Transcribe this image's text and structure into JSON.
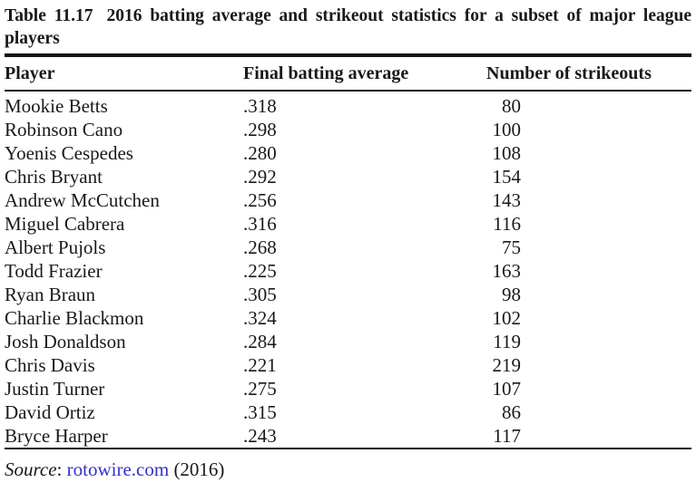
{
  "title": {
    "label": "Table 11.17",
    "text": "2016 batting average and strikeout statistics for a subset of major league players"
  },
  "columns": [
    "Player",
    "Final batting average",
    "Number of strikeouts"
  ],
  "players": [
    {
      "name": "Mookie Betts",
      "avg": ".318",
      "strikeouts": "80"
    },
    {
      "name": "Robinson Cano",
      "avg": ".298",
      "strikeouts": "100"
    },
    {
      "name": "Yoenis Cespedes",
      "avg": ".280",
      "strikeouts": "108"
    },
    {
      "name": "Chris Bryant",
      "avg": ".292",
      "strikeouts": "154"
    },
    {
      "name": "Andrew McCutchen",
      "avg": ".256",
      "strikeouts": "143"
    },
    {
      "name": "Miguel Cabrera",
      "avg": ".316",
      "strikeouts": "116"
    },
    {
      "name": "Albert Pujols",
      "avg": ".268",
      "strikeouts": "75"
    },
    {
      "name": "Todd Frazier",
      "avg": ".225",
      "strikeouts": "163"
    },
    {
      "name": "Ryan Braun",
      "avg": ".305",
      "strikeouts": "98"
    },
    {
      "name": "Charlie Blackmon",
      "avg": ".324",
      "strikeouts": "102"
    },
    {
      "name": "Josh Donaldson",
      "avg": ".284",
      "strikeouts": "119"
    },
    {
      "name": "Chris Davis",
      "avg": ".221",
      "strikeouts": "219"
    },
    {
      "name": "Justin Turner",
      "avg": ".275",
      "strikeouts": "107"
    },
    {
      "name": "David Ortiz",
      "avg": ".315",
      "strikeouts": "86"
    },
    {
      "name": "Bryce Harper",
      "avg": ".243",
      "strikeouts": "117"
    }
  ],
  "source": {
    "label": "Source",
    "separator": ": ",
    "link": "rotowire.com",
    "year": " (2016)"
  },
  "colors": {
    "text": "#19191b",
    "rule": "#141414",
    "link": "#3232cc",
    "background": "#ffffff"
  }
}
